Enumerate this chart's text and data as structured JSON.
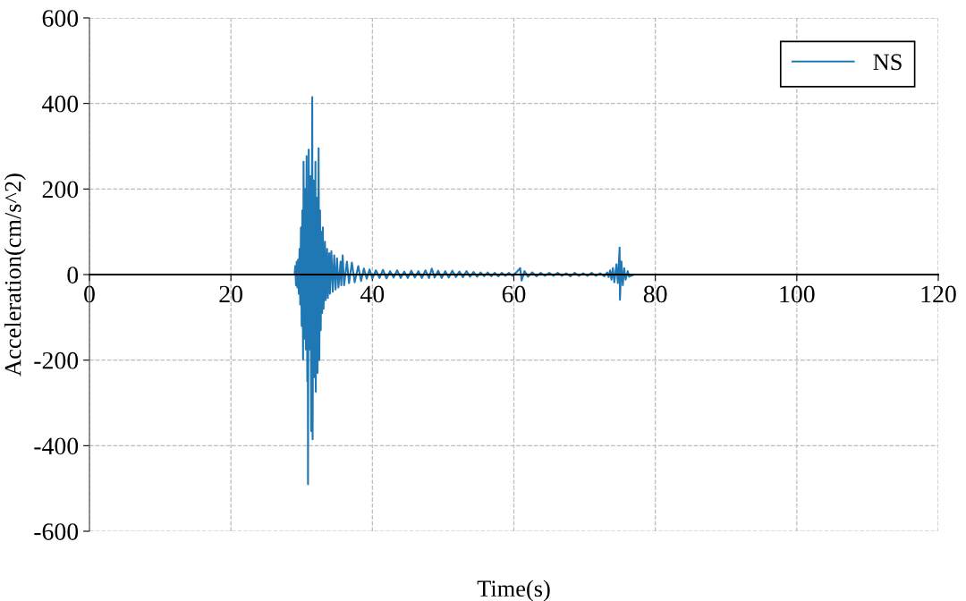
{
  "chart_data": {
    "type": "line",
    "xlabel": "Time(s)",
    "ylabel": "Acceleration(cm/s^2)",
    "x": [
      0,
      29.0,
      29.1,
      29.2,
      29.3,
      29.4,
      29.5,
      29.6,
      29.7,
      29.8,
      29.9,
      30.0,
      30.1,
      30.2,
      30.27,
      30.4,
      30.5,
      30.6,
      30.7,
      30.8,
      30.85,
      30.9,
      31.0,
      31.15,
      31.25,
      31.35,
      31.5,
      31.55,
      31.7,
      31.8,
      31.95,
      32.0,
      32.1,
      32.25,
      32.4,
      32.5,
      32.6,
      32.7,
      32.8,
      32.9,
      33.0,
      33.1,
      33.3,
      33.4,
      33.6,
      33.7,
      33.9,
      34.0,
      34.2,
      34.4,
      34.6,
      34.8,
      35.0,
      35.2,
      35.5,
      35.6,
      35.8,
      36.0,
      36.4,
      36.7,
      37.1,
      37.5,
      38.0,
      38.4,
      38.8,
      39.2,
      39.6,
      40.0,
      40.5,
      41.0,
      41.5,
      42.0,
      42.5,
      43.0,
      43.5,
      44.0,
      44.5,
      45.0,
      45.5,
      46.0,
      46.5,
      47.0,
      47.5,
      48.0,
      48.4,
      48.8,
      49.3,
      49.8,
      50.3,
      50.8,
      51.3,
      51.8,
      52.3,
      52.8,
      53.3,
      53.8,
      54.3,
      54.8,
      55.3,
      55.8,
      56.3,
      56.8,
      57.3,
      57.8,
      58.3,
      58.8,
      59.3,
      59.8,
      60.4,
      60.9,
      61.1,
      61.5,
      62.0,
      62.6,
      63.2,
      63.8,
      64.4,
      65.0,
      65.6,
      66.2,
      66.8,
      67.4,
      68.0,
      68.6,
      69.2,
      69.8,
      70.4,
      71.0,
      71.6,
      72.2,
      72.8,
      73.2,
      73.4,
      73.6,
      73.8,
      74.0,
      74.2,
      74.5,
      74.7,
      74.95,
      75.0,
      75.2,
      75.4,
      75.6,
      75.8,
      76.1,
      76.3,
      77.0,
      95.6
    ],
    "series": [
      {
        "name": "NS",
        "color": "#1f77b4",
        "values": [
          0,
          0,
          20,
          -25,
          30,
          -30,
          35,
          -45,
          60,
          -70,
          110,
          -120,
          150,
          -199,
          264,
          -150,
          200,
          -175,
          277,
          -250,
          180,
          -490,
          292,
          -175,
          230,
          -366,
          415,
          -385,
          220,
          -240,
          264,
          -274,
          180,
          -230,
          295,
          -200,
          150,
          -130,
          100,
          -90,
          110,
          -80,
          77,
          -60,
          60,
          -55,
          50,
          -45,
          55,
          -40,
          45,
          -35,
          38,
          -30,
          30,
          -25,
          45,
          -25,
          30,
          -20,
          28,
          -18,
          20,
          -15,
          14,
          -10,
          12,
          -9,
          10,
          -8,
          11,
          -9,
          8,
          -7,
          10,
          -8,
          7,
          -8,
          9,
          -7,
          8,
          -8,
          10,
          -8,
          14,
          -7,
          9,
          -8,
          8,
          -7,
          9,
          -6,
          7,
          -6,
          8,
          -5,
          6,
          -5,
          5,
          -4,
          5,
          -4,
          4,
          -4,
          4,
          -3,
          4,
          -3,
          6,
          15,
          -14,
          8,
          -5,
          5,
          -4,
          4,
          -3,
          4,
          -3,
          4,
          -3,
          3,
          -4,
          4,
          -3,
          3,
          -3,
          4,
          -3,
          3,
          -4,
          5,
          -6,
          10,
          -12,
          15,
          -18,
          24,
          -20,
          63,
          -59,
          31,
          -25,
          15,
          -12,
          8,
          -5,
          0,
          0
        ]
      }
    ],
    "xlim": [
      0,
      120
    ],
    "ylim": [
      -600,
      600
    ],
    "xticks": [
      0,
      20,
      40,
      60,
      80,
      100,
      120
    ],
    "yticks": [
      {
        "value": -600,
        "label": "-600"
      },
      {
        "value": -400,
        "label": "-400"
      },
      {
        "value": -200,
        "label": "-200"
      },
      0,
      200,
      400,
      600
    ],
    "grid": true,
    "legend": "top right",
    "line_style": "solid"
  }
}
